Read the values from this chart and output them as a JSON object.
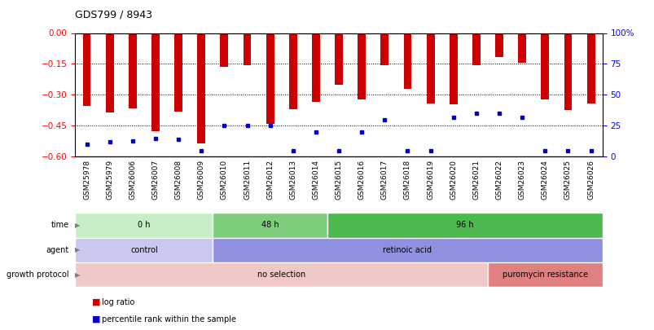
{
  "title": "GDS799 / 8943",
  "samples": [
    "GSM25978",
    "GSM25979",
    "GSM26006",
    "GSM26007",
    "GSM26008",
    "GSM26009",
    "GSM26010",
    "GSM26011",
    "GSM26012",
    "GSM26013",
    "GSM26014",
    "GSM26015",
    "GSM26016",
    "GSM26017",
    "GSM26018",
    "GSM26019",
    "GSM26020",
    "GSM26021",
    "GSM26022",
    "GSM26023",
    "GSM26024",
    "GSM26025",
    "GSM26026"
  ],
  "log_ratio": [
    -0.355,
    -0.385,
    -0.365,
    -0.475,
    -0.38,
    -0.535,
    -0.165,
    -0.155,
    -0.44,
    -0.37,
    -0.335,
    -0.25,
    -0.32,
    -0.155,
    -0.27,
    -0.34,
    -0.345,
    -0.155,
    -0.115,
    -0.145,
    -0.32,
    -0.375,
    -0.34
  ],
  "percentile": [
    10,
    12,
    13,
    15,
    14,
    5,
    25,
    25,
    25,
    5,
    20,
    5,
    20,
    30,
    5,
    5,
    32,
    35,
    35,
    32,
    5,
    5,
    5
  ],
  "ylim": [
    -0.6,
    0.0
  ],
  "yticks_left": [
    0.0,
    -0.15,
    -0.3,
    -0.45,
    -0.6
  ],
  "yticks_right": [
    100,
    75,
    50,
    25,
    0
  ],
  "bar_color": "#cc0000",
  "marker_color": "#0000cc",
  "time_groups": [
    {
      "label": "0 h",
      "start": 0,
      "end": 6,
      "color": "#c8eec8"
    },
    {
      "label": "48 h",
      "start": 6,
      "end": 11,
      "color": "#7dcd7d"
    },
    {
      "label": "96 h",
      "start": 11,
      "end": 23,
      "color": "#4db84d"
    }
  ],
  "agent_groups": [
    {
      "label": "control",
      "start": 0,
      "end": 6,
      "color": "#c8c8f0"
    },
    {
      "label": "retinoic acid",
      "start": 6,
      "end": 23,
      "color": "#9090e0"
    }
  ],
  "growth_groups": [
    {
      "label": "no selection",
      "start": 0,
      "end": 18,
      "color": "#f0c8c8"
    },
    {
      "label": "puromycin resistance",
      "start": 18,
      "end": 23,
      "color": "#e08080"
    }
  ],
  "legend_items": [
    {
      "label": "log ratio",
      "color": "#cc0000"
    },
    {
      "label": "percentile rank within the sample",
      "color": "#0000cc"
    }
  ]
}
